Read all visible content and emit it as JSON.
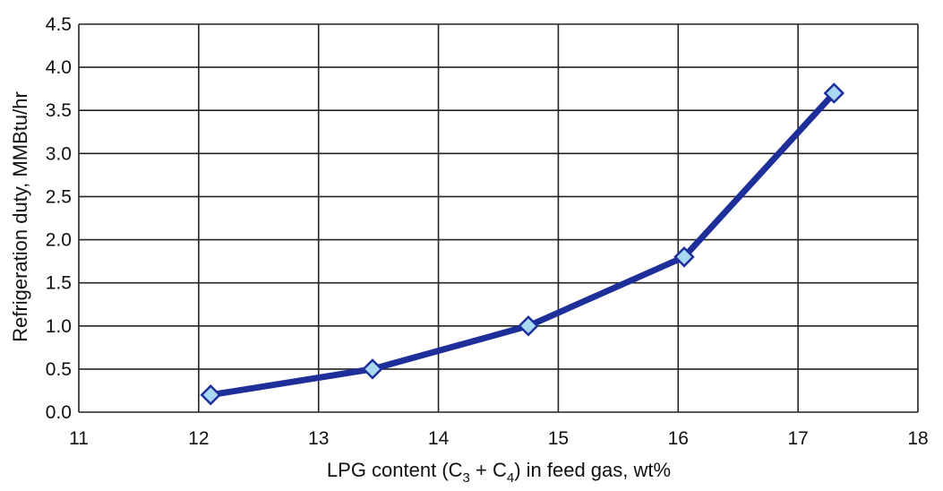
{
  "chart_data": {
    "type": "line",
    "xlabel_parts": {
      "before": "LPG content (C",
      "sub1": "3",
      "middle": " + C",
      "sub2": "4",
      "after": ") in feed gas, wt%"
    },
    "ylabel": "Refrigeration duty, MMBtu/hr",
    "xlim": [
      11,
      18
    ],
    "ylim": [
      0,
      4.5
    ],
    "x_ticks": [
      "11",
      "12",
      "13",
      "14",
      "15",
      "16",
      "17",
      "18"
    ],
    "y_ticks": [
      "0.0",
      "0.5",
      "1.0",
      "1.5",
      "2.0",
      "2.5",
      "3.0",
      "3.5",
      "4.0",
      "4.5"
    ],
    "grid": true,
    "series": [
      {
        "x": [
          12.1,
          13.45,
          14.75,
          16.05,
          17.3
        ],
        "y": [
          0.2,
          0.5,
          1.0,
          1.8,
          3.7
        ]
      }
    ],
    "colors": {
      "line": "#1f2f9a",
      "marker_fill": "#a9d9f2",
      "marker_stroke": "#1f2f9a",
      "grid": "#222222"
    }
  }
}
